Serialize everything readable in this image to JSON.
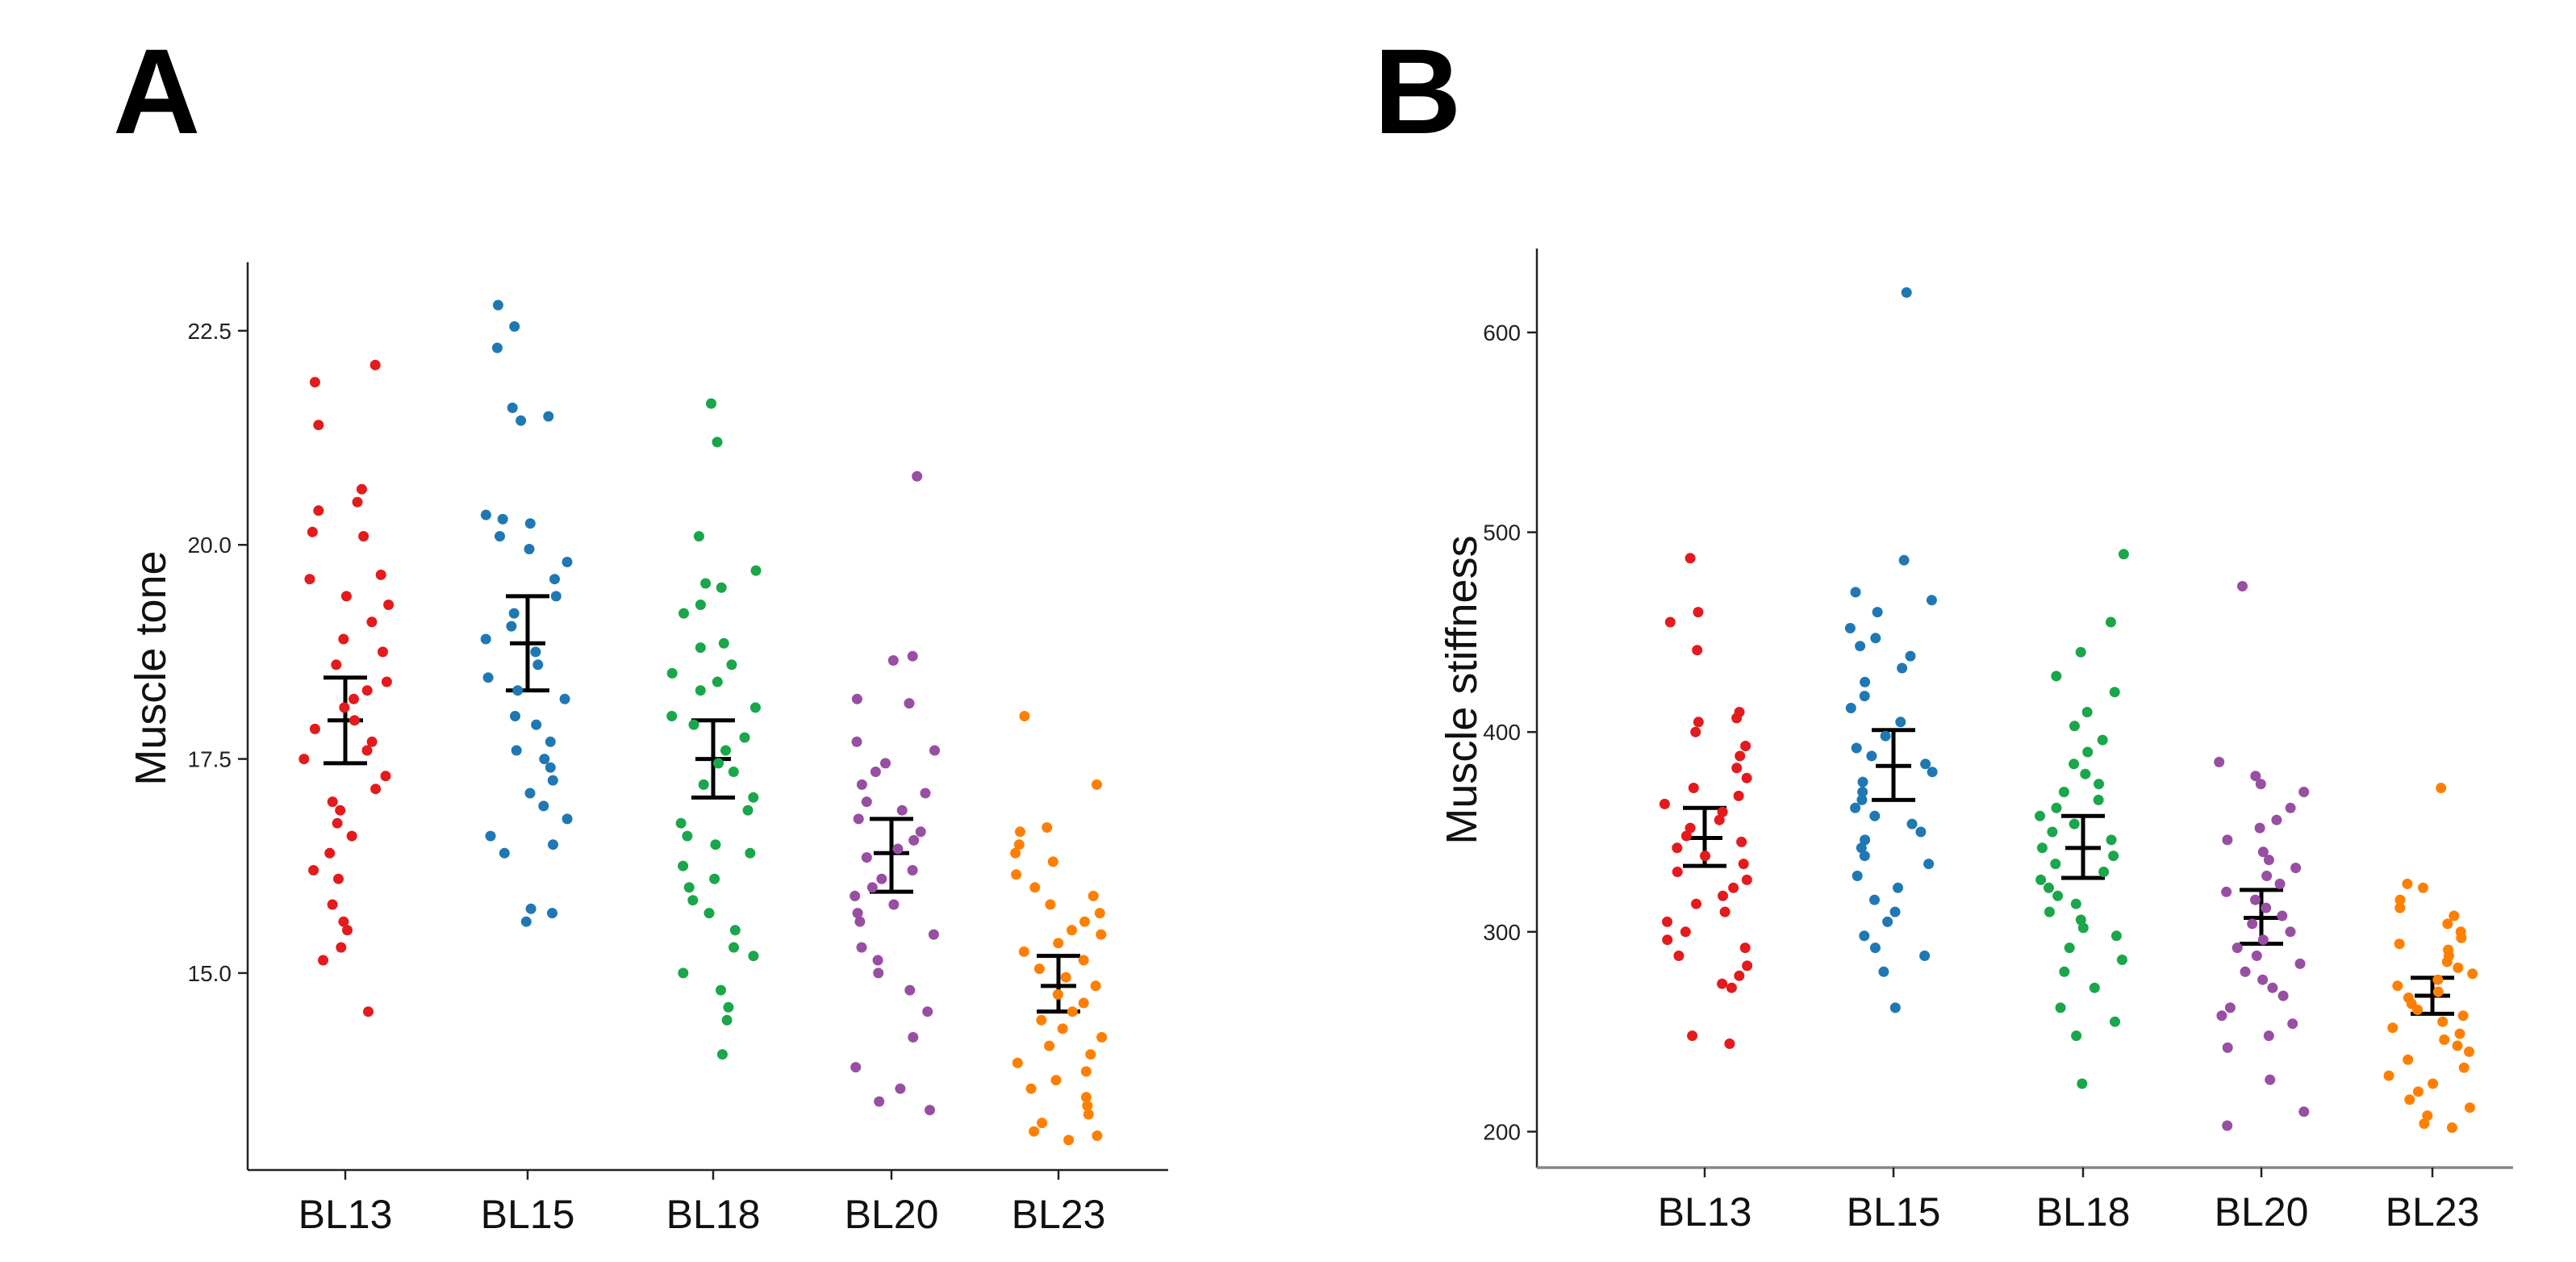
{
  "chart_data": [
    {
      "panel_letter": "A",
      "type": "scatter",
      "subtype": "jitter-strip with mean and error bars",
      "title": "",
      "xlabel": "",
      "ylabel": "Muscle tone",
      "ylim": [
        12.7,
        23.3
      ],
      "yticks": [
        15.0,
        17.5,
        20.0,
        22.5
      ],
      "ytick_labels": [
        "15.0",
        "17.5",
        "20.0",
        "22.5"
      ],
      "categories": [
        "BL13",
        "BL15",
        "BL18",
        "BL20",
        "BL23"
      ],
      "colors": [
        "#e41a1c",
        "#1f78b4",
        "#1aa64b",
        "#984ea3",
        "#ff7f00"
      ],
      "summary": [
        {
          "mean": 17.95,
          "lower": 17.45,
          "upper": 18.45
        },
        {
          "mean": 18.85,
          "lower": 18.3,
          "upper": 19.4
        },
        {
          "mean": 17.5,
          "lower": 17.05,
          "upper": 17.95
        },
        {
          "mean": 16.4,
          "lower": 15.95,
          "upper": 16.8
        },
        {
          "mean": 14.85,
          "lower": 14.55,
          "upper": 15.2
        }
      ],
      "points": [
        [
          22.1,
          21.9,
          21.4,
          20.65,
          20.5,
          20.4,
          20.15,
          20.1,
          19.65,
          19.6,
          19.4,
          19.3,
          19.1,
          18.9,
          18.75,
          18.6,
          18.4,
          18.3,
          18.2,
          18.1,
          17.95,
          17.85,
          17.7,
          17.6,
          17.5,
          17.3,
          17.15,
          17.0,
          16.9,
          16.75,
          16.6,
          16.4,
          16.2,
          16.1,
          15.8,
          15.6,
          15.5,
          15.3,
          15.15,
          14.55
        ],
        [
          22.8,
          22.55,
          22.3,
          21.6,
          21.5,
          21.45,
          20.35,
          20.3,
          20.25,
          20.1,
          19.95,
          19.8,
          19.6,
          19.4,
          19.2,
          19.05,
          18.9,
          18.75,
          18.6,
          18.45,
          18.3,
          18.2,
          18.0,
          17.9,
          17.7,
          17.6,
          17.5,
          17.4,
          17.25,
          17.1,
          16.95,
          16.8,
          16.6,
          16.5,
          16.4,
          15.75,
          15.7,
          15.6
        ],
        [
          21.65,
          21.2,
          20.1,
          19.7,
          19.55,
          19.5,
          19.3,
          19.2,
          18.85,
          18.8,
          18.6,
          18.5,
          18.4,
          18.3,
          18.1,
          18.0,
          17.9,
          17.75,
          17.6,
          17.45,
          17.35,
          17.2,
          17.05,
          16.9,
          16.75,
          16.6,
          16.5,
          16.4,
          16.25,
          16.1,
          16.0,
          15.85,
          15.7,
          15.5,
          15.3,
          15.2,
          15.0,
          14.8,
          14.6,
          14.45,
          14.05
        ],
        [
          20.8,
          18.7,
          18.65,
          18.2,
          18.15,
          17.7,
          17.6,
          17.45,
          17.35,
          17.2,
          17.1,
          17.0,
          16.9,
          16.8,
          16.65,
          16.55,
          16.45,
          16.35,
          16.2,
          16.1,
          16.0,
          15.9,
          15.8,
          15.7,
          15.6,
          15.45,
          15.3,
          15.15,
          15.0,
          14.8,
          14.55,
          14.25,
          13.9,
          13.65,
          13.5,
          13.4
        ],
        [
          18.0,
          17.2,
          16.7,
          16.65,
          16.5,
          16.4,
          16.3,
          16.15,
          16.0,
          15.9,
          15.8,
          15.7,
          15.6,
          15.5,
          15.45,
          15.35,
          15.25,
          15.15,
          15.05,
          14.95,
          14.85,
          14.75,
          14.65,
          14.55,
          14.45,
          14.35,
          14.25,
          14.15,
          14.05,
          13.95,
          13.85,
          13.75,
          13.65,
          13.55,
          13.45,
          13.35,
          13.25,
          13.15,
          13.1,
          13.05
        ]
      ]
    },
    {
      "panel_letter": "B",
      "type": "scatter",
      "subtype": "jitter-strip with mean and error bars",
      "title": "",
      "xlabel": "",
      "ylabel": "Muscle stiffness",
      "ylim": [
        182,
        642
      ],
      "yticks": [
        200,
        300,
        400,
        500,
        600
      ],
      "ytick_labels": [
        "200",
        "300",
        "400",
        "500",
        "600"
      ],
      "categories": [
        "BL13",
        "BL15",
        "BL18",
        "BL20",
        "BL23"
      ],
      "colors": [
        "#e41a1c",
        "#1f78b4",
        "#1aa64b",
        "#984ea3",
        "#ff7f00"
      ],
      "summary": [
        {
          "mean": 347,
          "lower": 333,
          "upper": 362
        },
        {
          "mean": 383,
          "lower": 366,
          "upper": 401
        },
        {
          "mean": 342,
          "lower": 327,
          "upper": 358
        },
        {
          "mean": 307,
          "lower": 294,
          "upper": 321
        },
        {
          "mean": 268,
          "lower": 259,
          "upper": 277
        }
      ],
      "points": [
        [
          487,
          460,
          455,
          441,
          410,
          407,
          405,
          400,
          393,
          388,
          382,
          377,
          372,
          368,
          364,
          360,
          356,
          352,
          348,
          345,
          342,
          338,
          334,
          330,
          326,
          322,
          318,
          314,
          310,
          305,
          300,
          296,
          292,
          288,
          283,
          278,
          274,
          272,
          248,
          244
        ],
        [
          620,
          486,
          470,
          466,
          460,
          452,
          447,
          443,
          438,
          432,
          425,
          418,
          412,
          405,
          398,
          392,
          388,
          384,
          380,
          375,
          370,
          366,
          362,
          358,
          354,
          350,
          346,
          342,
          338,
          334,
          328,
          322,
          316,
          310,
          305,
          298,
          292,
          288,
          280,
          262
        ],
        [
          489,
          455,
          440,
          428,
          420,
          410,
          403,
          396,
          390,
          384,
          379,
          374,
          370,
          366,
          362,
          358,
          354,
          350,
          346,
          342,
          338,
          334,
          330,
          326,
          322,
          318,
          314,
          310,
          306,
          302,
          298,
          292,
          286,
          280,
          272,
          262,
          255,
          248,
          224
        ],
        [
          473,
          385,
          378,
          374,
          370,
          362,
          356,
          352,
          346,
          340,
          336,
          332,
          328,
          324,
          320,
          316,
          312,
          308,
          304,
          300,
          296,
          292,
          288,
          284,
          280,
          276,
          272,
          268,
          262,
          258,
          254,
          248,
          242,
          226,
          210,
          203
        ],
        [
          372,
          324,
          322,
          316,
          312,
          308,
          304,
          300,
          297,
          294,
          291,
          288,
          285,
          282,
          279,
          276,
          273,
          270,
          267,
          264,
          261,
          258,
          255,
          252,
          249,
          246,
          243,
          240,
          236,
          232,
          228,
          224,
          220,
          216,
          212,
          208,
          204,
          202
        ]
      ]
    }
  ]
}
